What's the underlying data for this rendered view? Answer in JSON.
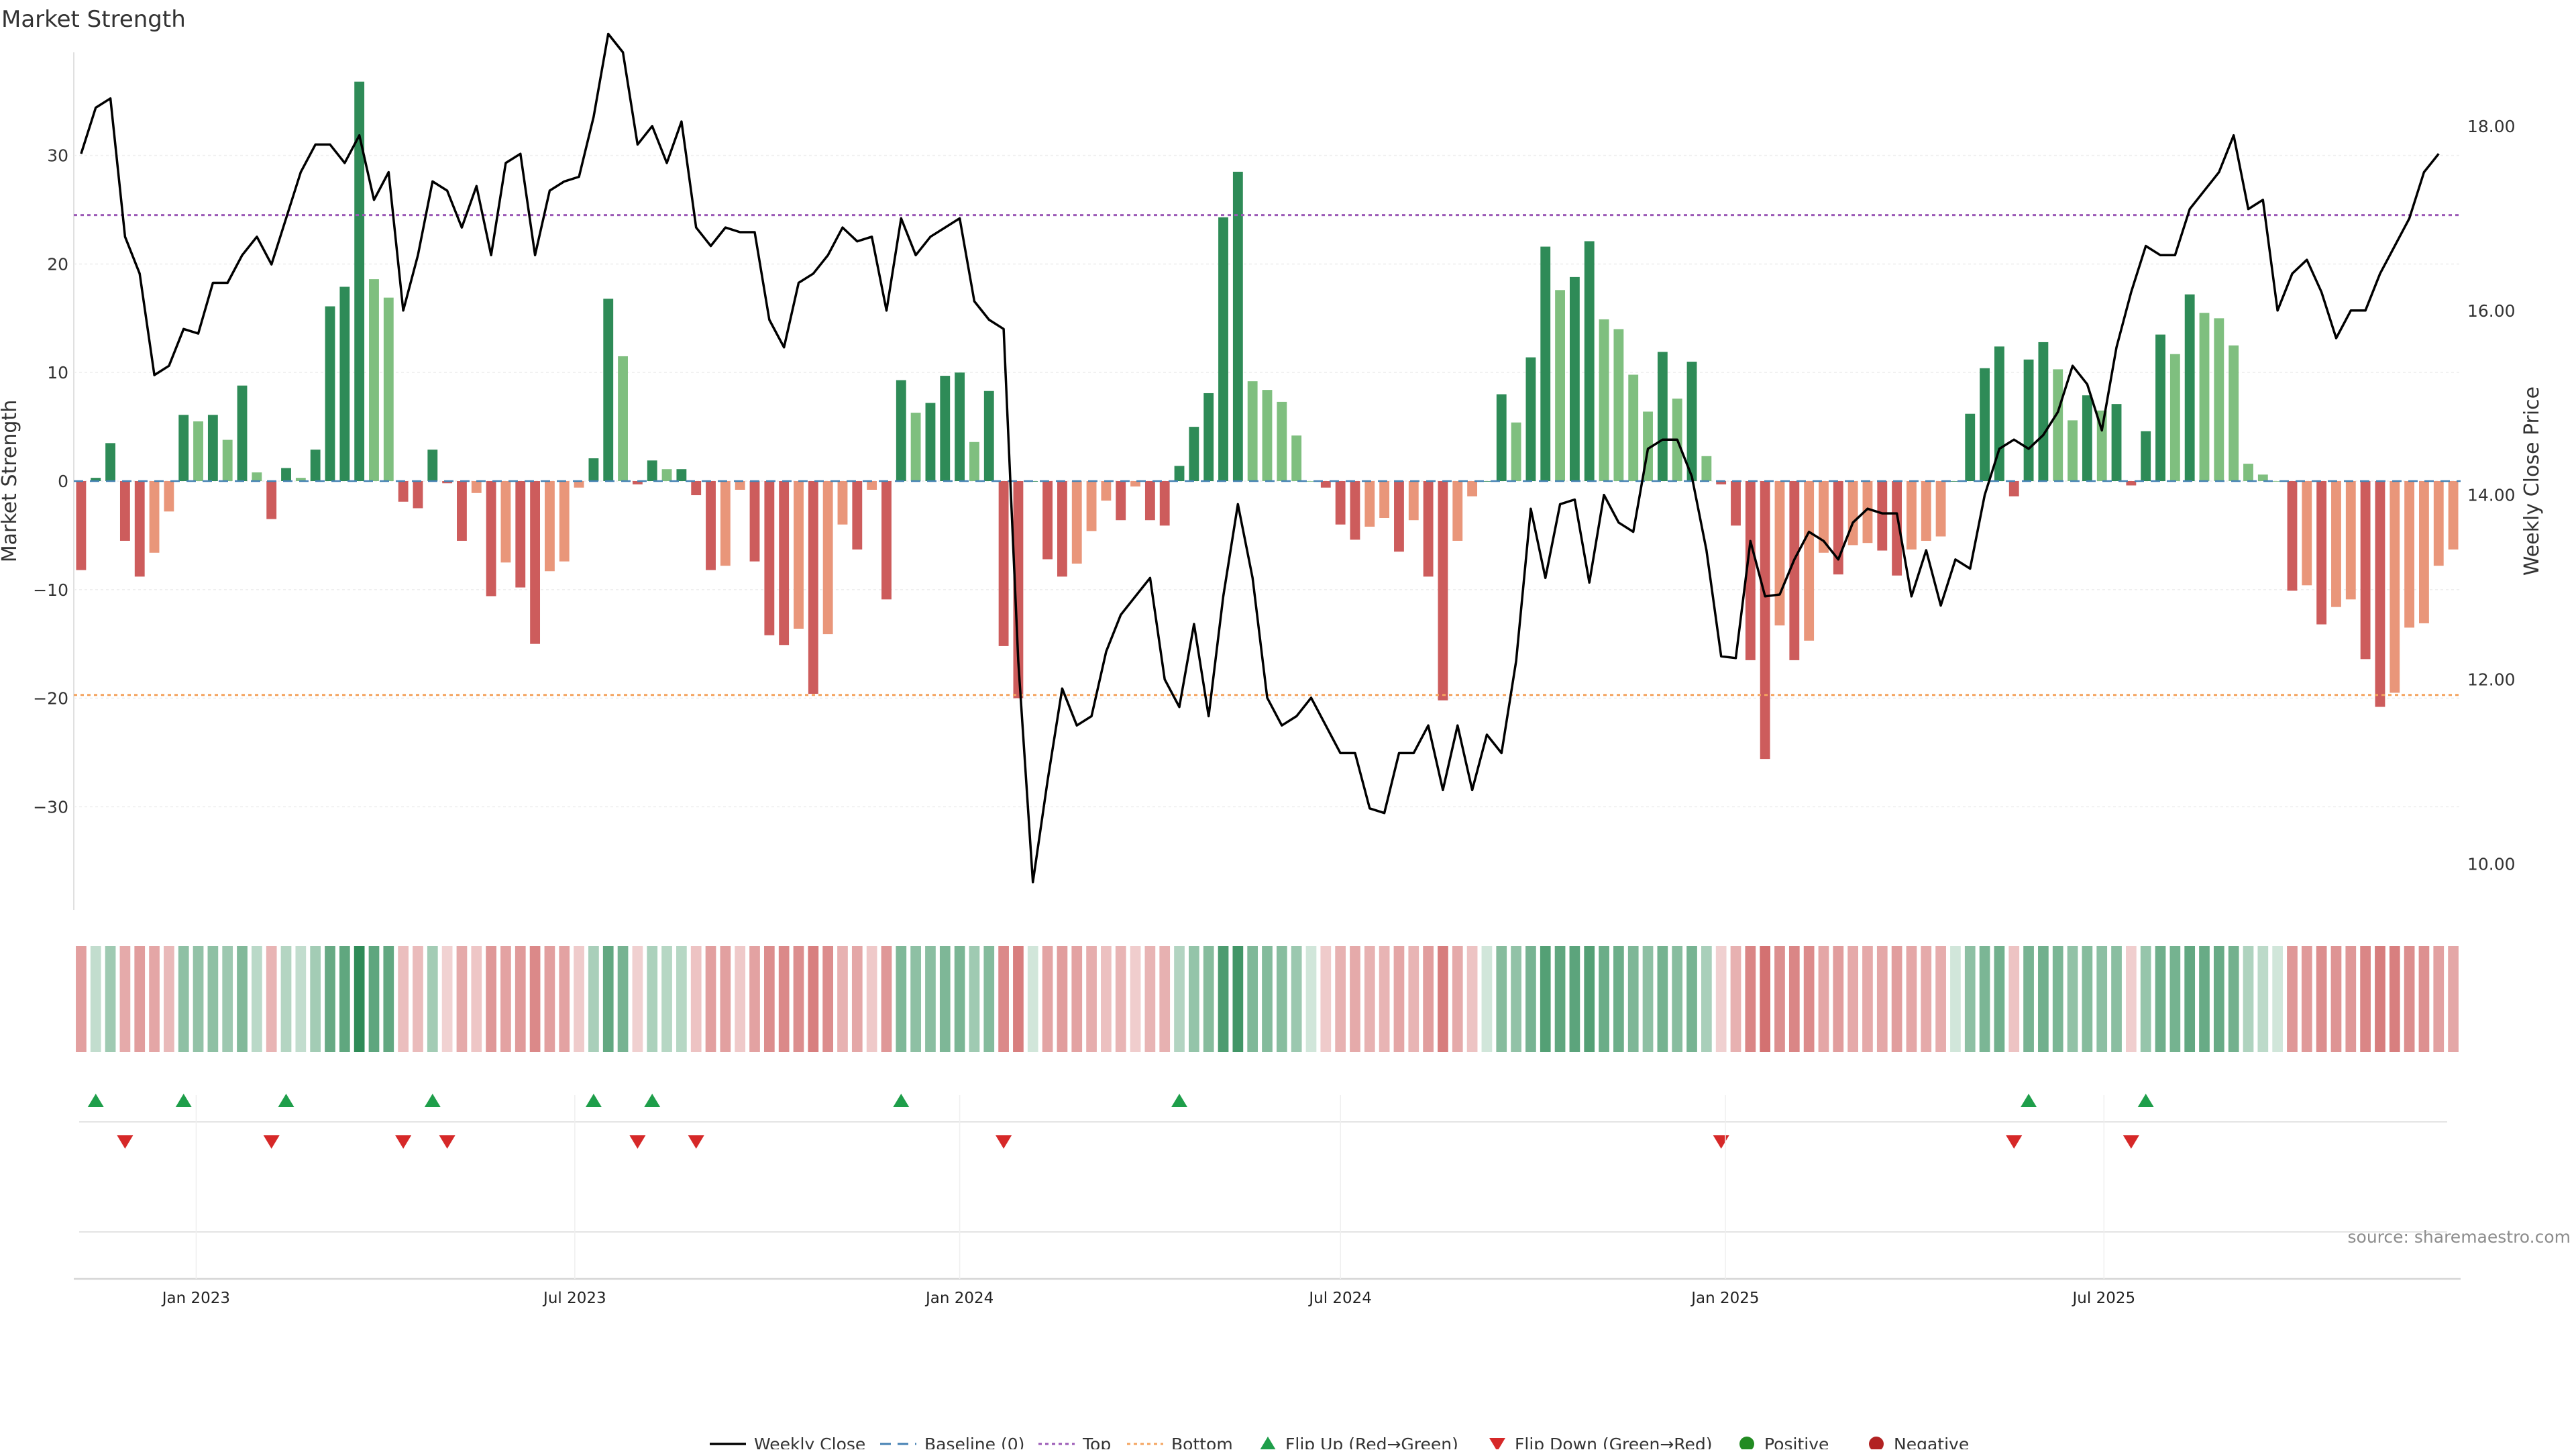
{
  "title": "Market Strength",
  "source_note": "source: sharemaestro.com",
  "colors": {
    "pos_strong": "#2e8b57",
    "pos_light": "#7fbf7f",
    "neg_strong": "#cd5c5c",
    "neg_light": "#e9967a",
    "top_line": "#9b59b6",
    "bottom_line": "#f4a460",
    "baseline": "#4682b4",
    "price_line": "#000000",
    "flip_up": "#1e9e4a",
    "flip_down": "#d62828"
  },
  "chart_data": {
    "type": "bar",
    "title": "Market Strength",
    "ylabel": "Market Strength",
    "y2label": "Weekly Close Price",
    "ylim": [
      -39.5,
      39.5
    ],
    "y2lim": [
      9.5,
      18.8
    ],
    "yticks": [
      "30",
      "20",
      "10",
      "0",
      "−10",
      "−20",
      "−30"
    ],
    "y2ticks": [
      "18.00",
      "16.00",
      "14.00",
      "12.00",
      "10.00"
    ],
    "xticks": [
      "Jan 2023",
      "Jul 2023",
      "Jan 2024",
      "Jul 2024",
      "Jan 2025",
      "Jul 2025"
    ],
    "x_start": "2022-11-07",
    "top_level": 24.5,
    "bottom_level": -19.7,
    "strength": [
      -8.2,
      0.3,
      3.5,
      -5.5,
      -8.8,
      -6.6,
      -2.8,
      6.1,
      5.5,
      6.1,
      3.8,
      8.8,
      0.8,
      -3.5,
      1.2,
      0.3,
      2.9,
      16.1,
      17.9,
      36.8,
      18.6,
      16.9,
      -1.9,
      -2.5,
      2.9,
      -0.2,
      -5.5,
      -1.1,
      -10.6,
      -7.5,
      -9.8,
      -15,
      -8.3,
      -7.4,
      -0.6,
      2.1,
      16.8,
      11.5,
      -0.3,
      1.9,
      1.1,
      1.1,
      -1.3,
      -8.2,
      -7.8,
      -0.8,
      -7.4,
      -14.2,
      -15.1,
      -13.6,
      -19.6,
      -14.1,
      -4,
      -6.3,
      -0.8,
      -10.9,
      9.3,
      6.3,
      7.2,
      9.7,
      10,
      3.6,
      8.3,
      -15.2,
      -20,
      0,
      -7.2,
      -8.8,
      -7.6,
      -4.6,
      -1.8,
      -3.6,
      -0.5,
      -3.6,
      -4.1,
      1.4,
      5,
      8.1,
      24.3,
      28.5,
      9.2,
      8.4,
      7.3,
      4.2,
      0,
      -0.6,
      -4,
      -5.4,
      -4.2,
      -3.4,
      -6.5,
      -3.6,
      -8.8,
      -20.2,
      -5.5,
      -1.4,
      0,
      8,
      5.4,
      11.4,
      21.6,
      17.6,
      18.8,
      22.1,
      14.9,
      14,
      9.8,
      6.4,
      11.9,
      7.6,
      11,
      2.3,
      -0.3,
      -4.1,
      -16.5,
      -25.6,
      -13.3,
      -16.5,
      -14.7,
      -6.6,
      -8.6,
      -5.9,
      -5.7,
      -6.4,
      -8.7,
      -6.3,
      -5.5,
      -5.1,
      0,
      6.2,
      10.4,
      12.4,
      -1.4,
      11.2,
      12.8,
      10.3,
      5.6,
      7.9,
      6.5,
      7.1,
      -0.4,
      4.6,
      13.5,
      11.7,
      17.2,
      15.5,
      15,
      12.5,
      1.6,
      0.6,
      0,
      -10.1,
      -9.6,
      -13.2,
      -11.6,
      -10.9,
      -16.4,
      -20.8,
      -19.5,
      -13.5,
      -13.1,
      -7.8,
      -6.3
    ],
    "price": [
      17.7,
      18.2,
      18.3,
      16.8,
      16.4,
      15.3,
      15.4,
      15.8,
      15.75,
      16.3,
      16.3,
      16.6,
      16.8,
      16.5,
      17,
      17.5,
      17.8,
      17.8,
      17.6,
      17.9,
      17.2,
      17.5,
      16.0,
      16.6,
      17.4,
      17.3,
      16.9,
      17.35,
      16.6,
      17.6,
      17.7,
      16.6,
      17.3,
      17.4,
      17.45,
      18.1,
      19.0,
      18.8,
      17.8,
      18.0,
      17.6,
      18.05,
      16.9,
      16.7,
      16.9,
      16.85,
      16.85,
      15.9,
      15.6,
      16.3,
      16.4,
      16.6,
      16.9,
      16.75,
      16.8,
      16.0,
      17,
      16.6,
      16.8,
      16.9,
      17.0,
      16.1,
      15.9,
      15.8,
      12.2,
      9.8,
      10.9,
      11.9,
      11.5,
      11.6,
      12.3,
      12.7,
      12.9,
      13.1,
      12.0,
      11.7,
      12.6,
      11.6,
      12.9,
      13.9,
      13.1,
      11.8,
      11.5,
      11.6,
      11.8,
      11.5,
      11.2,
      11.2,
      10.6,
      10.55,
      11.2,
      11.2,
      11.5,
      10.8,
      11.5,
      10.8,
      11.4,
      11.2,
      12.2,
      13.85,
      13.1,
      13.9,
      13.95,
      13.05,
      14.0,
      13.7,
      13.6,
      14.5,
      14.6,
      14.6,
      14.2,
      13.4,
      12.25,
      12.23,
      13.5,
      12.9,
      12.92,
      13.3,
      13.6,
      13.5,
      13.3,
      13.7,
      13.85,
      13.8,
      13.8,
      12.9,
      13.4,
      12.8,
      13.3,
      13.2,
      14,
      14.5,
      14.6,
      14.5,
      14.65,
      14.9,
      15.4,
      15.2,
      14.7,
      15.6,
      16.2,
      16.7,
      16.6,
      16.6,
      17.1,
      17.3,
      17.5,
      17.9,
      17.1,
      17.2,
      16.0,
      16.4,
      16.55,
      16.2,
      15.7,
      16.0,
      16.0,
      16.4,
      16.7,
      17.0,
      17.5,
      17.7
    ]
  },
  "legend": [
    {
      "key": "weekly_close",
      "label": "Weekly Close",
      "icon": "solid-line"
    },
    {
      "key": "baseline",
      "label": "Baseline (0)",
      "icon": "dashed-line"
    },
    {
      "key": "top",
      "label": "Top",
      "icon": "dotted-line"
    },
    {
      "key": "bottom",
      "label": "Bottom",
      "icon": "dotted-line"
    },
    {
      "key": "flip_up",
      "label": "Flip Up (Red→Green)",
      "icon": "triangle-up"
    },
    {
      "key": "flip_down",
      "label": "Flip Down (Green→Red)",
      "icon": "triangle-down"
    },
    {
      "key": "positive",
      "label": "Positive",
      "icon": "dot"
    },
    {
      "key": "negative",
      "label": "Negative",
      "icon": "dot"
    }
  ]
}
